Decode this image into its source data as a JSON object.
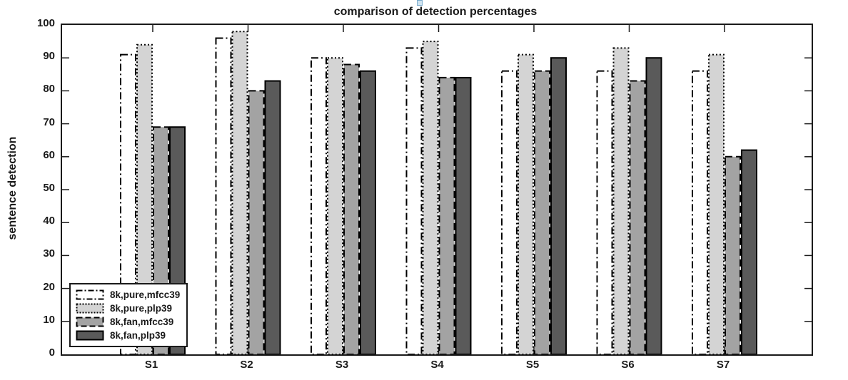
{
  "figure": {
    "title": "comparison of detection percentages",
    "ylabel": "sentence detection",
    "handle_icon_color": "#cfe3f0"
  },
  "chart_data": {
    "type": "bar",
    "title": "comparison of detection percentages",
    "xlabel": "",
    "ylabel": "sentence detection",
    "categories": [
      "S1",
      "S2",
      "S3",
      "S4",
      "S5",
      "S6",
      "S7"
    ],
    "series": [
      {
        "name": "8k,pure,mfcc39",
        "values": [
          91,
          96,
          90,
          93,
          86,
          86,
          86
        ],
        "fill": "#ffffff",
        "border_style": "dash-dot",
        "border_color": "#000000"
      },
      {
        "name": "8k,pure,plp39",
        "values": [
          94,
          98,
          90,
          95,
          91,
          93,
          91
        ],
        "fill": "#d4d4d4",
        "border_style": "dotted",
        "border_color": "#000000"
      },
      {
        "name": "8k,fan,mfcc39",
        "values": [
          69,
          80,
          88,
          84,
          86,
          83,
          60
        ],
        "fill": "#a3a3a3",
        "border_style": "dashed",
        "border_color": "#000000"
      },
      {
        "name": "8k,fan,plp39",
        "values": [
          69,
          83,
          86,
          84,
          90,
          90,
          62
        ],
        "fill": "#5a5a5a",
        "border_style": "solid",
        "border_color": "#000000"
      }
    ],
    "ylim": [
      0,
      100
    ],
    "yticks": [
      0,
      10,
      20,
      30,
      40,
      50,
      60,
      70,
      80,
      90,
      100
    ],
    "grid": false,
    "legend_position": "southwest",
    "axis_color": "#1a1a1a"
  }
}
